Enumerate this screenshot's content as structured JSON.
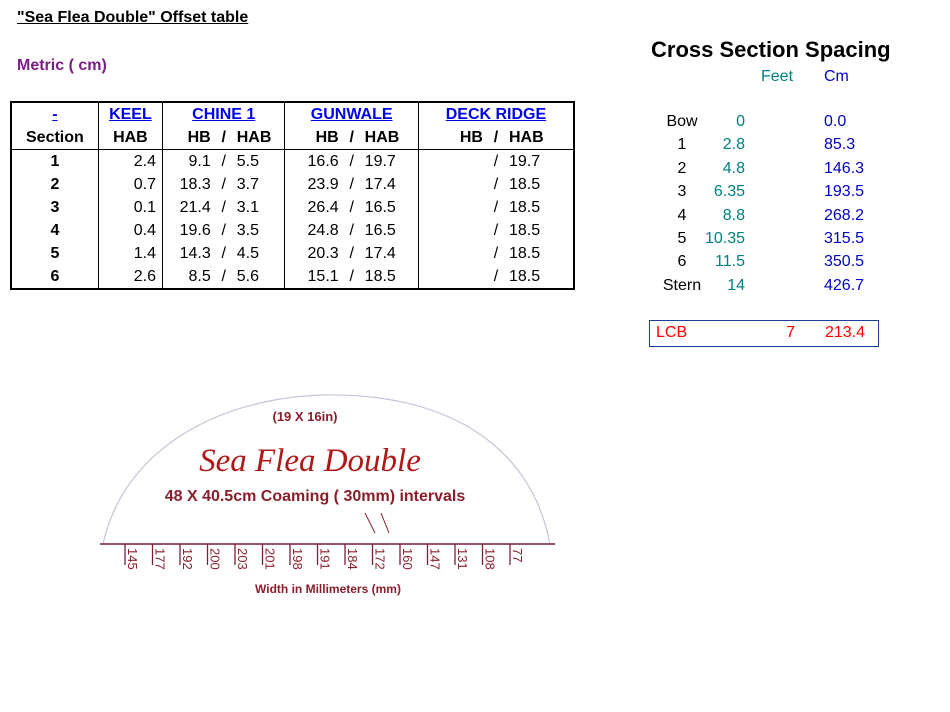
{
  "document": {
    "title": "\"Sea Flea Double\" Offset table",
    "units": "Metric ( cm)"
  },
  "offset_table": {
    "group_headers": {
      "section": "-",
      "keel": "KEEL",
      "chine": "CHINE 1",
      "gunwale": "GUNWALE",
      "deck": "DECK RIDGE"
    },
    "sub_headers": {
      "section": "Section",
      "hab": "HAB",
      "hb": "HB",
      "sep": "/"
    },
    "rows": [
      {
        "section": "1",
        "keel_hab": "2.4",
        "chine_hb": "9.1",
        "chine_hab": "5.5",
        "gunwale_hb": "16.6",
        "gunwale_hab": "19.7",
        "deck_hb": "",
        "deck_hab": "19.7"
      },
      {
        "section": "2",
        "keel_hab": "0.7",
        "chine_hb": "18.3",
        "chine_hab": "3.7",
        "gunwale_hb": "23.9",
        "gunwale_hab": "17.4",
        "deck_hb": "",
        "deck_hab": "18.5"
      },
      {
        "section": "3",
        "keel_hab": "0.1",
        "chine_hb": "21.4",
        "chine_hab": "3.1",
        "gunwale_hb": "26.4",
        "gunwale_hab": "16.5",
        "deck_hb": "",
        "deck_hab": "18.5"
      },
      {
        "section": "4",
        "keel_hab": "0.4",
        "chine_hb": "19.6",
        "chine_hab": "3.5",
        "gunwale_hb": "24.8",
        "gunwale_hab": "16.5",
        "deck_hb": "",
        "deck_hab": "18.5"
      },
      {
        "section": "5",
        "keel_hab": "1.4",
        "chine_hb": "14.3",
        "chine_hab": "4.5",
        "gunwale_hb": "20.3",
        "gunwale_hab": "17.4",
        "deck_hb": "",
        "deck_hab": "18.5"
      },
      {
        "section": "6",
        "keel_hab": "2.6",
        "chine_hb": "8.5",
        "chine_hab": "5.6",
        "gunwale_hb": "15.1",
        "gunwale_hab": "18.5",
        "deck_hb": "",
        "deck_hab": "18.5"
      }
    ]
  },
  "spacing": {
    "title": "Cross Section Spacing",
    "feet_header": "Feet",
    "cm_header": "Cm",
    "rows": [
      {
        "label": "Bow",
        "feet": "0",
        "cm": "0.0"
      },
      {
        "label": "1",
        "feet": "2.8",
        "cm": "85.3"
      },
      {
        "label": "2",
        "feet": "4.8",
        "cm": "146.3"
      },
      {
        "label": "3",
        "feet": "6.35",
        "cm": "193.5"
      },
      {
        "label": "4",
        "feet": "8.8",
        "cm": "268.2"
      },
      {
        "label": "5",
        "feet": "10.35",
        "cm": "315.5"
      },
      {
        "label": "6",
        "feet": "11.5",
        "cm": "350.5"
      },
      {
        "label": "Stern",
        "feet": "14",
        "cm": "426.7"
      }
    ],
    "lcb": {
      "label": "LCB",
      "feet": "7",
      "cm": "213.4"
    }
  },
  "coaming": {
    "size_note": "(19 X 16in)",
    "name": "Sea Flea Double",
    "desc": "48 X 40.5cm Coaming ( 30mm) intervals",
    "scale_label": "Width in Millimeters (mm)",
    "ticks": [
      "145",
      "177",
      "192",
      "200",
      "203",
      "201",
      "198",
      "191",
      "184",
      "172",
      "160",
      "147",
      "131",
      "108",
      "77"
    ],
    "colors": {
      "title": "#b01818",
      "text": "#8a1e2a",
      "outline": "#c7c3d9",
      "tick": "#7a1e3a"
    }
  }
}
